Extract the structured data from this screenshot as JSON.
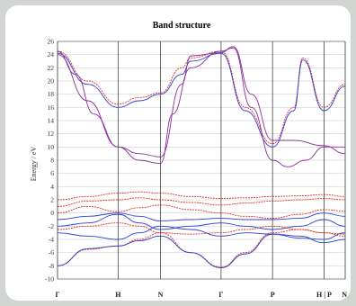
{
  "chart_data": {
    "type": "line",
    "title": "Band structure",
    "ylabel": "Energy / eV",
    "xlabel": "",
    "ylim": [
      -10,
      26
    ],
    "y_ticks": [
      -10,
      -8,
      -6,
      -4,
      -2,
      0,
      2,
      4,
      6,
      8,
      10,
      12,
      14,
      16,
      18,
      20,
      22,
      24,
      26
    ],
    "grid": true,
    "kpoints": [
      {
        "label": "Γ",
        "x": 0
      },
      {
        "label": "H",
        "x": 1
      },
      {
        "label": "N",
        "x": 1.7
      },
      {
        "label": "Γ",
        "x": 2.7
      },
      {
        "label": "P",
        "x": 3.55
      },
      {
        "label": "H | P",
        "x": 4.4
      },
      {
        "label": "N",
        "x": 4.75
      }
    ],
    "colors": {
      "series_red": "#e0301e",
      "series_blue": "#2b3fd6",
      "series_purple": "#8a2f9a",
      "vline": "#444444",
      "grid": "#c8c8c8"
    },
    "series": [
      {
        "color": "red",
        "points": [
          [
            0,
            -8
          ],
          [
            0.5,
            -5.5
          ],
          [
            1,
            -5
          ],
          [
            1.35,
            -4
          ],
          [
            1.7,
            -3
          ],
          [
            2.2,
            -6
          ],
          [
            2.7,
            -8.2
          ],
          [
            3.1,
            -6
          ],
          [
            3.55,
            -3
          ],
          [
            4,
            -2.5
          ],
          [
            4.4,
            -3
          ],
          [
            4.75,
            -3.5
          ]
        ]
      },
      {
        "color": "blue",
        "points": [
          [
            0,
            -8
          ],
          [
            0.5,
            -5.4
          ],
          [
            1,
            -5
          ],
          [
            1.35,
            -4.2
          ],
          [
            1.7,
            -3.5
          ],
          [
            2.2,
            -6
          ],
          [
            2.7,
            -8.3
          ],
          [
            3.1,
            -6.2
          ],
          [
            3.55,
            -3.2
          ],
          [
            4,
            -3.5
          ],
          [
            4.4,
            -4.5
          ],
          [
            4.75,
            -4
          ]
        ]
      },
      {
        "color": "red",
        "points": [
          [
            0,
            24.5
          ],
          [
            0.5,
            20
          ],
          [
            1,
            16.5
          ],
          [
            1.35,
            17.5
          ],
          [
            1.7,
            18.2
          ],
          [
            2.05,
            22
          ],
          [
            2.2,
            23.5
          ],
          [
            2.7,
            24.5
          ],
          [
            3.1,
            16
          ],
          [
            3.55,
            10.5
          ],
          [
            3.9,
            16
          ],
          [
            4.05,
            23.5
          ],
          [
            4.4,
            16
          ],
          [
            4.75,
            19.5
          ]
        ]
      },
      {
        "color": "blue",
        "points": [
          [
            0,
            24.2
          ],
          [
            0.5,
            19.5
          ],
          [
            1,
            16
          ],
          [
            1.35,
            17
          ],
          [
            1.7,
            18
          ],
          [
            2.05,
            21
          ],
          [
            2.2,
            23
          ],
          [
            2.7,
            24.2
          ],
          [
            3.1,
            15.5
          ],
          [
            3.55,
            10
          ],
          [
            3.9,
            15.5
          ],
          [
            4.05,
            23.2
          ],
          [
            4.4,
            15.5
          ],
          [
            4.75,
            19.2
          ]
        ]
      },
      {
        "color": "purple",
        "points": [
          [
            0,
            24.5
          ],
          [
            0.3,
            21
          ],
          [
            0.6,
            15
          ],
          [
            1,
            10
          ],
          [
            1.35,
            8
          ],
          [
            1.7,
            7.5
          ],
          [
            1.9,
            15
          ],
          [
            2.2,
            22
          ],
          [
            2.7,
            24.5
          ],
          [
            2.9,
            25
          ],
          [
            3.2,
            16
          ],
          [
            3.55,
            8
          ],
          [
            3.8,
            7
          ],
          [
            4.1,
            8
          ],
          [
            4.4,
            10
          ],
          [
            4.75,
            10
          ]
        ]
      },
      {
        "color": "purple",
        "points": [
          [
            0,
            24
          ],
          [
            0.5,
            17
          ],
          [
            1,
            10
          ],
          [
            1.35,
            9
          ],
          [
            1.7,
            8.5
          ],
          [
            2.05,
            19.5
          ],
          [
            2.2,
            23.8
          ],
          [
            2.7,
            24.3
          ],
          [
            2.9,
            25.2
          ],
          [
            3.2,
            18
          ],
          [
            3.55,
            11
          ],
          [
            3.9,
            11
          ],
          [
            4.4,
            10.2
          ],
          [
            4.75,
            9
          ]
        ]
      },
      {
        "color": "red",
        "points": [
          [
            0,
            2
          ],
          [
            0.5,
            2.5
          ],
          [
            1,
            3
          ],
          [
            1.35,
            3.2
          ],
          [
            1.7,
            3
          ],
          [
            2.2,
            2.5
          ],
          [
            2.7,
            2.2
          ],
          [
            3.1,
            2.3
          ],
          [
            3.55,
            2.5
          ],
          [
            4,
            2.6
          ],
          [
            4.4,
            2.8
          ],
          [
            4.75,
            2.5
          ]
        ]
      },
      {
        "color": "red",
        "points": [
          [
            0,
            1
          ],
          [
            0.5,
            1.8
          ],
          [
            1,
            2
          ],
          [
            1.35,
            2.3
          ],
          [
            1.7,
            2
          ],
          [
            2.2,
            1.6
          ],
          [
            2.7,
            1.2
          ],
          [
            3.1,
            1.5
          ],
          [
            3.55,
            1.8
          ],
          [
            4,
            2
          ],
          [
            4.4,
            2.2
          ],
          [
            4.75,
            2
          ]
        ]
      },
      {
        "color": "red",
        "points": [
          [
            0,
            0
          ],
          [
            0.5,
            1
          ],
          [
            1,
            0.2
          ],
          [
            1.35,
            0.8
          ],
          [
            1.7,
            1.2
          ],
          [
            2.2,
            0.5
          ],
          [
            2.7,
            0
          ],
          [
            3.1,
            -0.5
          ],
          [
            3.55,
            -0.8
          ],
          [
            4,
            -0.2
          ],
          [
            4.4,
            0.5
          ],
          [
            4.75,
            0.3
          ]
        ]
      },
      {
        "color": "blue",
        "points": [
          [
            0,
            -1
          ],
          [
            0.5,
            -0.5
          ],
          [
            1,
            0
          ],
          [
            1.35,
            -0.5
          ],
          [
            1.7,
            -1.2
          ],
          [
            2.2,
            -1
          ],
          [
            2.7,
            -0.8
          ],
          [
            3.1,
            -1
          ],
          [
            3.55,
            -1
          ],
          [
            4,
            -0.8
          ],
          [
            4.4,
            0
          ],
          [
            4.75,
            -0.5
          ]
        ]
      },
      {
        "color": "blue",
        "points": [
          [
            0,
            -2
          ],
          [
            0.5,
            -1.5
          ],
          [
            1,
            -0.2
          ],
          [
            1.35,
            -1.5
          ],
          [
            1.7,
            -2.5
          ],
          [
            2.2,
            -2
          ],
          [
            2.7,
            -1.5
          ],
          [
            3.1,
            -2
          ],
          [
            3.55,
            -2.5
          ],
          [
            4,
            -2
          ],
          [
            4.4,
            -1
          ],
          [
            4.75,
            -2
          ]
        ]
      },
      {
        "color": "blue",
        "points": [
          [
            0,
            -3
          ],
          [
            0.5,
            -3.5
          ],
          [
            1,
            -4
          ],
          [
            1.35,
            -3
          ],
          [
            1.7,
            -2
          ],
          [
            2.2,
            -2.5
          ],
          [
            2.7,
            -3.5
          ],
          [
            3.1,
            -3
          ],
          [
            3.55,
            -3.2
          ],
          [
            4,
            -3.8
          ],
          [
            4.4,
            -4
          ],
          [
            4.75,
            -3
          ]
        ]
      },
      {
        "color": "red",
        "points": [
          [
            0,
            -2.5
          ],
          [
            0.5,
            -2
          ],
          [
            1,
            -1.5
          ],
          [
            1.35,
            -2
          ],
          [
            1.7,
            -3
          ],
          [
            2.2,
            -3.2
          ],
          [
            2.7,
            -3
          ],
          [
            3.1,
            -2.5
          ],
          [
            3.55,
            -2
          ],
          [
            4,
            -2.5
          ],
          [
            4.4,
            -3
          ],
          [
            4.75,
            -3.2
          ]
        ]
      }
    ]
  }
}
